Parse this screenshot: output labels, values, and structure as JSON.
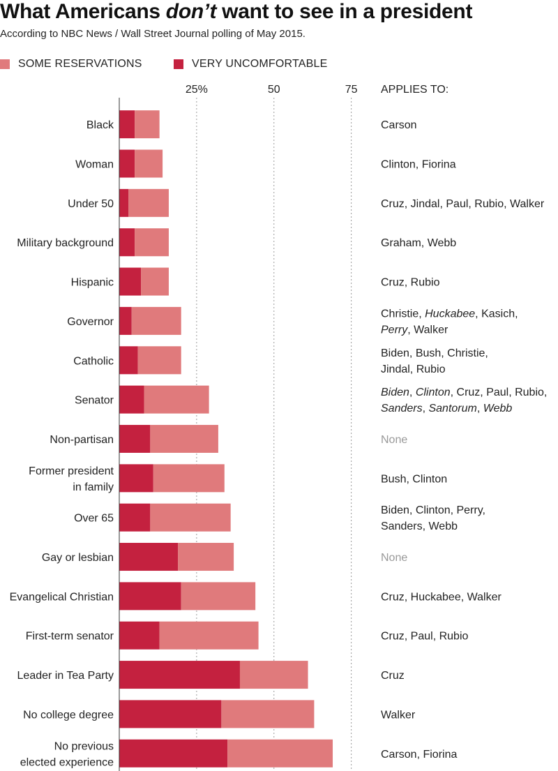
{
  "title_parts": [
    "What Americans ",
    "don’t",
    " want to see in a president"
  ],
  "subtitle": "According to NBC News / Wall Street Journal polling of May 2015.",
  "legend": [
    {
      "label": "SOME RESERVATIONS",
      "color": "#e07a7c"
    },
    {
      "label": "VERY UNCOMFORTABLE",
      "color": "#c4213f"
    }
  ],
  "applies_header": "APPLIES TO:",
  "chart_data": {
    "type": "bar",
    "orientation": "horizontal",
    "stacked": true,
    "title": "What Americans don’t want to see in a president",
    "xlim": [
      0,
      75
    ],
    "x_ticks": [
      25,
      50,
      75
    ],
    "x_tick_labels": [
      "25%",
      "50",
      "75"
    ],
    "grid": "dotted vertical",
    "legend_position": "top-left",
    "categories": [
      "Black",
      "Woman",
      "Under 50",
      "Military background",
      "Hispanic",
      "Governor",
      "Catholic",
      "Senator",
      "Non-partisan",
      "Former president\nin family",
      "Over 65",
      "Gay or lesbian",
      "Evangelical Christian",
      "First-term senator",
      "Leader in Tea Party",
      "No college degree",
      "No previous\nelected experience"
    ],
    "series": [
      {
        "name": "VERY UNCOMFORTABLE",
        "color": "#c4213f",
        "values": [
          5,
          5,
          3,
          5,
          7,
          4,
          6,
          8,
          10,
          11,
          10,
          19,
          20,
          13,
          39,
          33,
          35
        ]
      },
      {
        "name": "SOME RESERVATIONS",
        "color": "#e07a7c",
        "values": [
          8,
          9,
          13,
          11,
          9,
          16,
          14,
          21,
          22,
          23,
          26,
          18,
          24,
          32,
          22,
          30,
          34
        ]
      }
    ],
    "applies_to": [
      [
        {
          "t": "Carson"
        }
      ],
      [
        {
          "t": "Clinton, Fiorina"
        }
      ],
      [
        {
          "t": "Cruz, Jindal, Paul, Rubio, Walker"
        }
      ],
      [
        {
          "t": "Graham, Webb"
        }
      ],
      [
        {
          "t": "Cruz, Rubio"
        }
      ],
      [
        {
          "t": "Christie, "
        },
        {
          "t": "Huckabee",
          "i": true
        },
        {
          "t": ", Kasich,"
        },
        {
          "t": "\n"
        },
        {
          "t": "Perry",
          "i": true
        },
        {
          "t": ", Walker"
        }
      ],
      [
        {
          "t": "Biden, Bush, Christie,"
        },
        {
          "t": "\n"
        },
        {
          "t": "Jindal, Rubio"
        }
      ],
      [
        {
          "t": "Biden",
          "i": true
        },
        {
          "t": ", "
        },
        {
          "t": "Clinton",
          "i": true
        },
        {
          "t": ", Cruz, Paul, Rubio,"
        },
        {
          "t": "\n"
        },
        {
          "t": "Sanders",
          "i": true
        },
        {
          "t": ", "
        },
        {
          "t": "Santorum",
          "i": true
        },
        {
          "t": ", "
        },
        {
          "t": "Webb",
          "i": true
        }
      ],
      [
        {
          "t": "None",
          "muted": true
        }
      ],
      [
        {
          "t": "Bush, Clinton"
        }
      ],
      [
        {
          "t": "Biden, Clinton, Perry,"
        },
        {
          "t": "\n"
        },
        {
          "t": "Sanders, Webb"
        }
      ],
      [
        {
          "t": "None",
          "muted": true
        }
      ],
      [
        {
          "t": "Cruz, Huckabee, Walker"
        }
      ],
      [
        {
          "t": "Cruz, Paul, Rubio"
        }
      ],
      [
        {
          "t": "Cruz"
        }
      ],
      [
        {
          "t": "Walker"
        }
      ],
      [
        {
          "t": "Carson, Fiorina"
        }
      ]
    ]
  }
}
